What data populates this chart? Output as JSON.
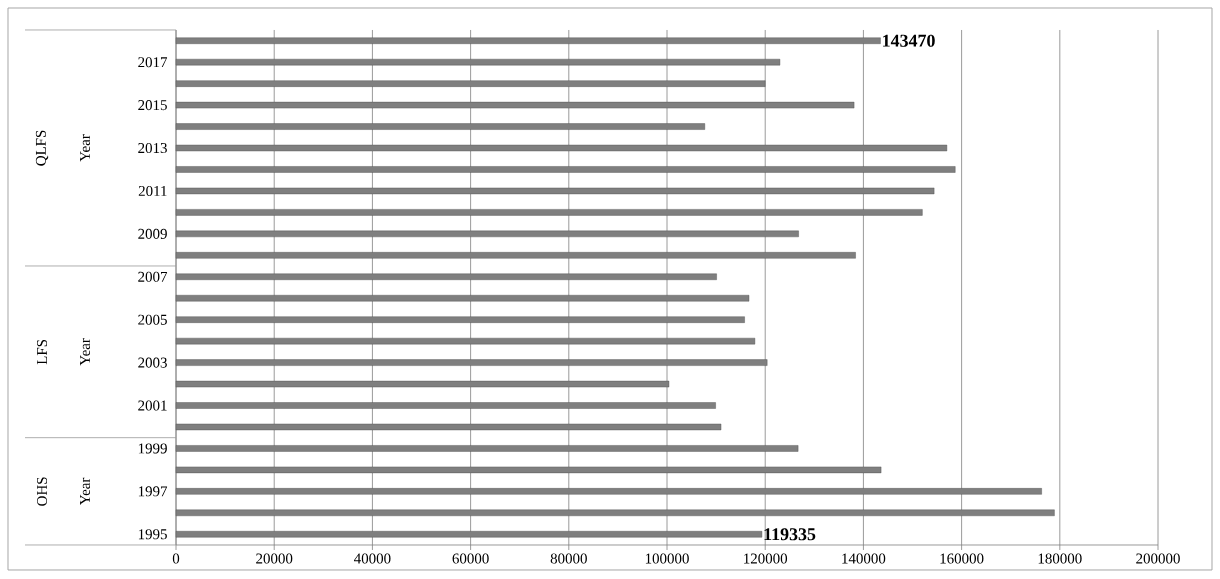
{
  "chart_data": {
    "type": "bar",
    "orientation": "horizontal",
    "annotations": [
      "QLFS",
      "Year",
      "LFS",
      "Year",
      "OHS",
      "Year"
    ],
    "categories": [
      null,
      "2017",
      null,
      "2015",
      null,
      "2013",
      null,
      "2011",
      null,
      "2009",
      null,
      "2007",
      null,
      "2005",
      null,
      "2003",
      null,
      "2001",
      null,
      "1999",
      null,
      "1997",
      null,
      "1995"
    ],
    "values": [
      143470,
      123000,
      120000,
      138100,
      107700,
      157000,
      158700,
      154400,
      152000,
      126800,
      138400,
      110100,
      116700,
      115800,
      117900,
      120400,
      100400,
      109900,
      111000,
      126700,
      143600,
      176300,
      178900,
      119335
    ],
    "value_labels": [
      "143470",
      null,
      null,
      null,
      null,
      null,
      null,
      null,
      null,
      null,
      null,
      null,
      null,
      null,
      null,
      null,
      null,
      null,
      null,
      null,
      null,
      null,
      null,
      "119335"
    ],
    "color": "#7f7f7f",
    "xlim": [
      0,
      200000
    ],
    "xticks": [
      0,
      20000,
      40000,
      60000,
      80000,
      100000,
      120000,
      140000,
      160000,
      180000,
      200000
    ],
    "grid": "x"
  }
}
